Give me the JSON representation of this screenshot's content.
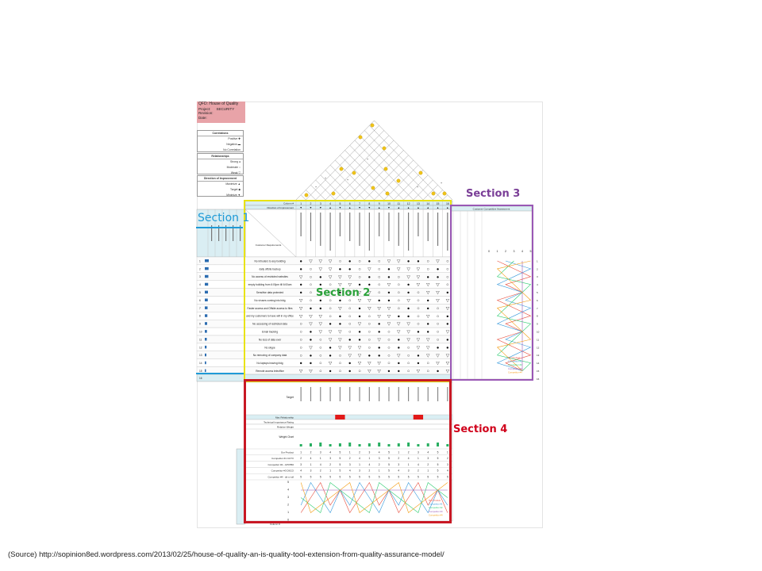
{
  "hoq": {
    "title": "QFD: House of Quality",
    "project": "Project:",
    "project_value": "SECURITY",
    "revision": "Revision:",
    "date": "Date:"
  },
  "legend": {
    "correlations_title": "Correlations",
    "positive": "Positive",
    "negative": "Negative",
    "no_correlation": "No Correlation",
    "relationships_title": "Relationships",
    "strong": "Strong",
    "moderate": "Moderate",
    "weak": "Weak",
    "direction_title": "Direction of Improvement",
    "maximize": "Maximize",
    "target": "Target",
    "minimize": "Minimize"
  },
  "section_labels": {
    "s1": "Section 1",
    "s2": "Section 2",
    "s3": "Section 3",
    "s4": "Section 4"
  },
  "section3_header": "Customer Competitive Assessment",
  "section2_headers": {
    "column_no": "Column #",
    "direction": "Direction of Improvement",
    "functional_reqs": "Functional Requirements",
    "customer_reqs": "Customer Requirements (Explicit and Implicit)"
  },
  "section1_headers": [
    "Row #",
    "Weight Chart",
    "Relative Weight",
    "Customer Importance",
    "Maximum Relationship"
  ],
  "columns": [
    "1",
    "2",
    "3",
    "4",
    "5",
    "6",
    "7",
    "8",
    "9",
    "10",
    "11",
    "12",
    "13",
    "14",
    "15",
    "16"
  ],
  "customer_requirements": [
    "No Intruders to any building",
    "daily offsite backup",
    "No access of restricted websites",
    "empty building from 6:00pm till 6:00am",
    "Sensitive data protected",
    "No viruses coming into bldg",
    "Faster access and Offsite access to files",
    "and my customers to have wifi in my office",
    "No accessing of restricted data",
    "Email tracking",
    "No loss of data ever",
    "No skype",
    "No removing of company data",
    "No laptops leaving bldg",
    "Remote access teleoffice"
  ],
  "section4_rows": [
    "Target",
    "Max Relationship",
    "Technical Importance Rating",
    "Relative Weight",
    "Weight Chart",
    "Our Product",
    "Competitor #1 CCTV",
    "Competitor #2 - APC550",
    "Competitor #3 DSCO",
    "Competitor #4 - dir-o-rull"
  ],
  "competitors": [
    "Our Product",
    "Competitor #1",
    "Competitor #2",
    "Competitor #3",
    "Competitor #4"
  ],
  "axis_numbers": [
    "0",
    "1",
    "2",
    "3",
    "4",
    "5"
  ],
  "tech_axis_numbers": [
    "5",
    "4",
    "3",
    "2",
    "1",
    "0"
  ],
  "row_no_label": "Row #",
  "col_no_label": "Column #",
  "source": "(Source) http://sopinion8ed.wordpress.com/2013/02/25/house-of-quality-an-is-quality-tool-extension-from-quality-assurance-model/",
  "colors": {
    "section1": "#1f9bd7",
    "section2": "#2aa23a",
    "section3": "#7a3e97",
    "section4": "#c81824",
    "title_box": "#e8a3a8",
    "header_fill": "#daeef3"
  }
}
